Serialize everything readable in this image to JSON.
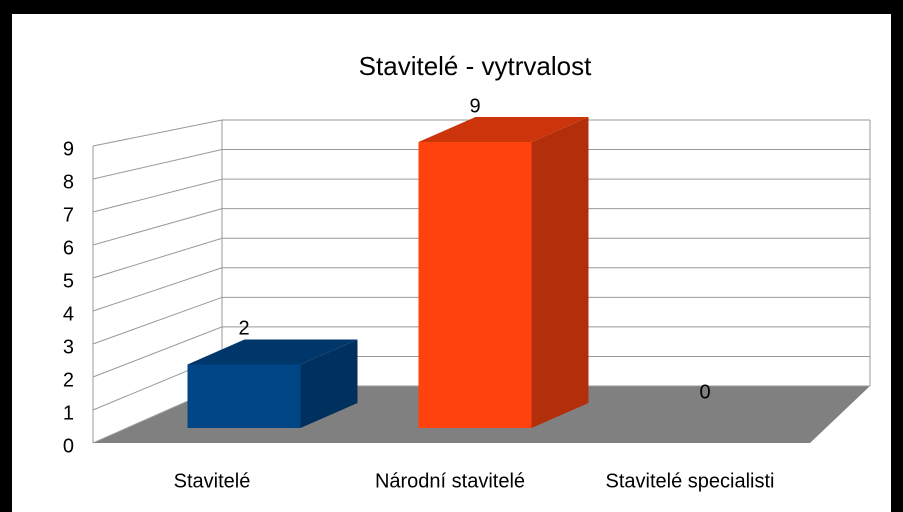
{
  "chart_data": {
    "type": "bar",
    "title": "Stavitelé - vytrvalost",
    "categories": [
      "Stavitelé",
      "Národní stavitelé",
      "Stavitelé specialisti"
    ],
    "values": [
      2,
      9,
      0
    ],
    "colors": [
      "#004586",
      "#ff420e",
      "#ffd320"
    ],
    "ylim": [
      0,
      9
    ],
    "yticks": [
      0,
      1,
      2,
      3,
      4,
      5,
      6,
      7,
      8,
      9
    ],
    "grid": true
  }
}
